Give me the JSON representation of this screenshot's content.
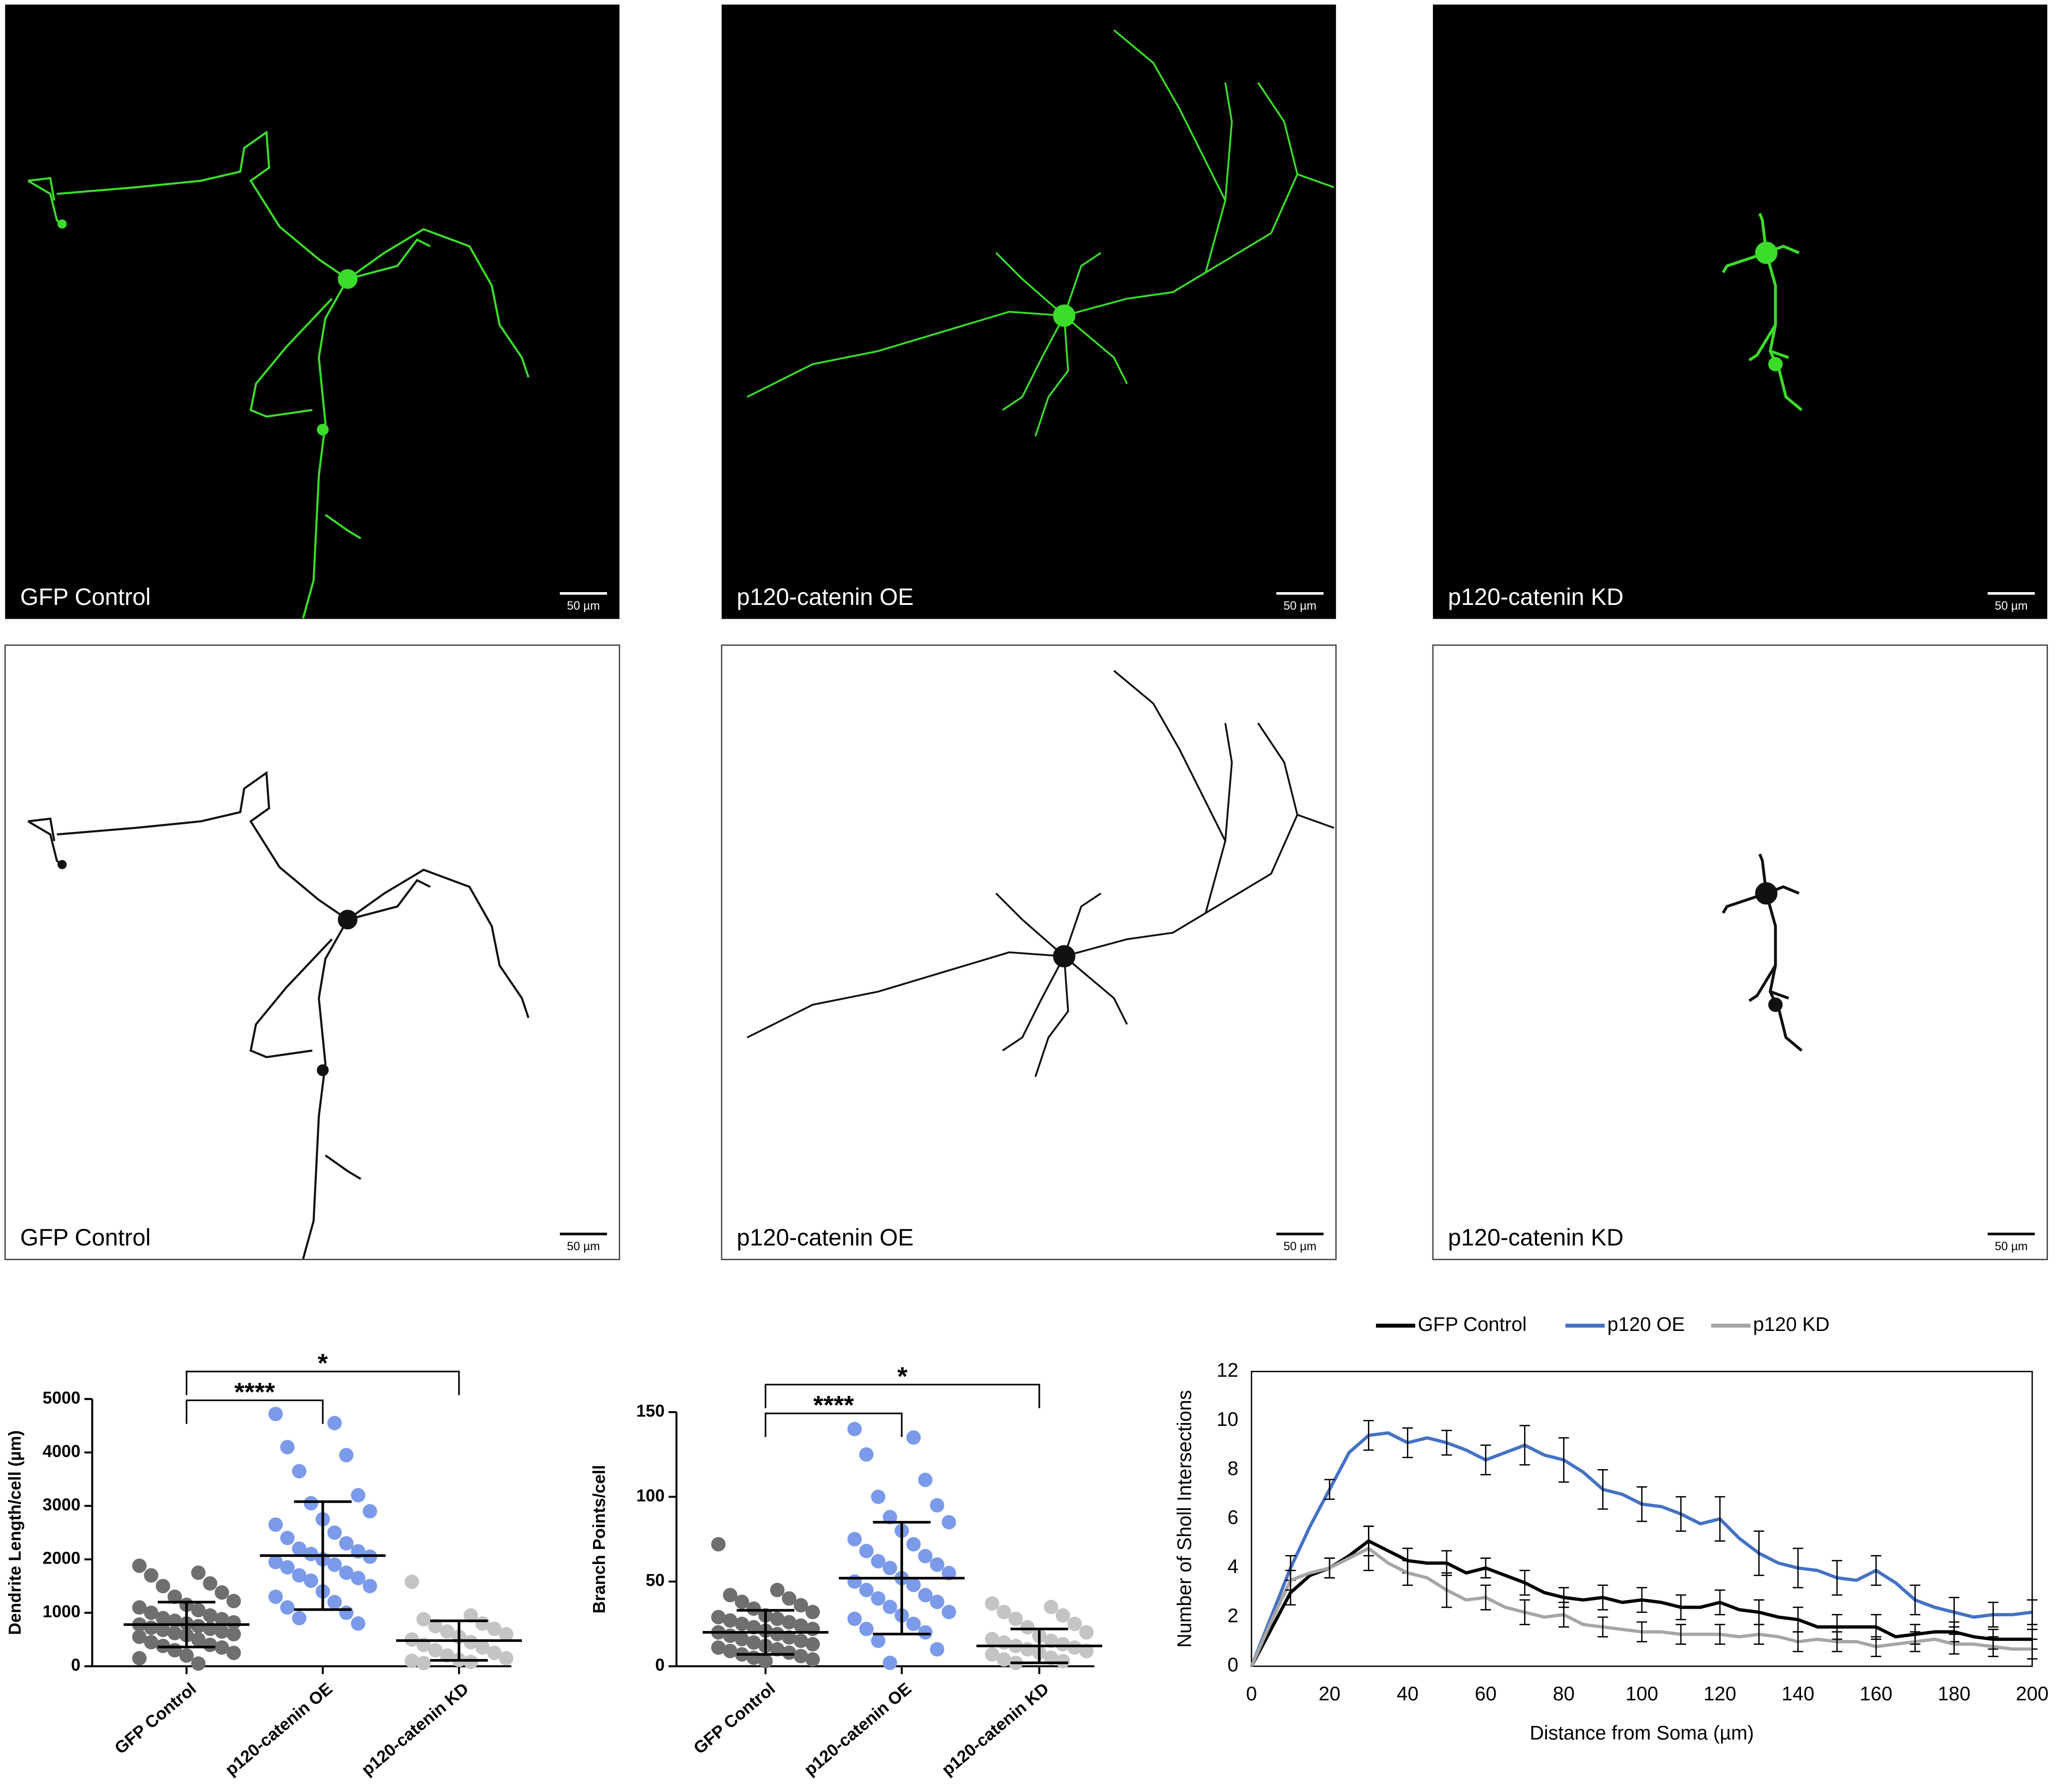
{
  "panels": [
    {
      "label": "GFP Control",
      "scale_bar": "50 µm"
    },
    {
      "label": "p120-catenin OE",
      "scale_bar": "50 µm"
    },
    {
      "label": "p120-catenin KD",
      "scale_bar": "50 µm"
    },
    {
      "label": "GFP Control",
      "scale_bar": "50 µm"
    },
    {
      "label": "p120-catenin OE",
      "scale_bar": "50 µm"
    },
    {
      "label": "p120-catenin KD",
      "scale_bar": "50 µm"
    }
  ],
  "chart_data": [
    {
      "type": "strip",
      "y_label": "Dendrite Length/cell (µm)",
      "categories": [
        "GFP Control",
        "p120-catenin OE",
        "p120-catenin KD"
      ],
      "colors": [
        "#6f6f6f",
        "#7b9bea",
        "#c4c4c4"
      ],
      "points": [
        [
          1880,
          1750,
          1700,
          1550,
          1500,
          1380,
          1300,
          1220,
          1150,
          1100,
          1050,
          1000,
          950,
          900,
          880,
          850,
          820,
          800,
          780,
          750,
          720,
          700,
          680,
          650,
          620,
          600,
          580,
          550,
          500,
          450,
          400,
          380,
          350,
          300,
          250,
          200,
          150,
          50
        ],
        [
          4720,
          4550,
          4100,
          3950,
          3650,
          3200,
          3050,
          2900,
          2750,
          2650,
          2500,
          2400,
          2300,
          2200,
          2150,
          2100,
          2050,
          2000,
          1950,
          1900,
          1850,
          1750,
          1700,
          1650,
          1600,
          1500,
          1400,
          1300,
          1200,
          1100,
          1000,
          900,
          800
        ],
        [
          1580,
          950,
          880,
          800,
          750,
          700,
          650,
          600,
          550,
          500,
          450,
          400,
          350,
          300,
          250,
          200,
          150,
          120,
          100,
          80,
          60
        ]
      ],
      "means": [
        780,
        2070,
        480
      ],
      "sds": [
        420,
        1010,
        370
      ],
      "ylim": [
        0,
        5000
      ],
      "yticks": [
        0,
        1000,
        2000,
        3000,
        4000,
        5000
      ],
      "comparisons": [
        {
          "groups": [
            "GFP Control",
            "p120-catenin OE"
          ],
          "label": "****"
        },
        {
          "groups": [
            "GFP Control",
            "p120-catenin KD"
          ],
          "label": "*"
        }
      ]
    },
    {
      "type": "strip",
      "y_label": "Branch Points/cell",
      "categories": [
        "GFP Control",
        "p120-catenin OE",
        "p120-catenin KD"
      ],
      "colors": [
        "#6f6f6f",
        "#7b9bea",
        "#c4c4c4"
      ],
      "points": [
        [
          72,
          45,
          42,
          40,
          38,
          36,
          34,
          32,
          30,
          29,
          28,
          27,
          26,
          25,
          24,
          23,
          22,
          21,
          20,
          19,
          18,
          17,
          16,
          15,
          14,
          13,
          12,
          11,
          10,
          9,
          8,
          7,
          6,
          5,
          4,
          3
        ],
        [
          140,
          135,
          125,
          110,
          100,
          95,
          88,
          85,
          80,
          75,
          72,
          68,
          65,
          62,
          60,
          58,
          55,
          52,
          50,
          48,
          45,
          42,
          40,
          38,
          35,
          32,
          30,
          28,
          25,
          22,
          20,
          15,
          10,
          2
        ],
        [
          37,
          35,
          32,
          30,
          28,
          25,
          23,
          20,
          18,
          16,
          15,
          14,
          13,
          12,
          11,
          10,
          9,
          8,
          7,
          5,
          4,
          3,
          2
        ]
      ],
      "means": [
        20,
        52,
        12
      ],
      "sds": [
        13,
        33,
        10
      ],
      "ylim": [
        0,
        150
      ],
      "yticks": [
        0,
        50,
        100,
        150
      ],
      "comparisons": [
        {
          "groups": [
            "GFP Control",
            "p120-catenin OE"
          ],
          "label": "****"
        },
        {
          "groups": [
            "GFP Control",
            "p120-catenin KD"
          ],
          "label": "*"
        }
      ]
    },
    {
      "type": "line",
      "x_label": "Distance from Soma (µm)",
      "y_label": "Number of Sholl Intersections",
      "x": [
        0,
        5,
        10,
        15,
        20,
        25,
        30,
        35,
        40,
        45,
        50,
        55,
        60,
        65,
        70,
        75,
        80,
        85,
        90,
        95,
        100,
        105,
        110,
        115,
        120,
        125,
        130,
        135,
        140,
        145,
        150,
        155,
        160,
        165,
        170,
        175,
        180,
        185,
        190,
        195,
        200
      ],
      "series": [
        {
          "name": "GFP Control",
          "color": "#000000",
          "values": [
            0,
            1.5,
            3,
            3.7,
            4.0,
            4.5,
            5.1,
            4.7,
            4.3,
            4.2,
            4.2,
            3.8,
            4.0,
            3.7,
            3.4,
            3.0,
            2.8,
            2.7,
            2.8,
            2.6,
            2.7,
            2.6,
            2.4,
            2.4,
            2.6,
            2.3,
            2.2,
            2.0,
            1.9,
            1.6,
            1.6,
            1.6,
            1.6,
            1.2,
            1.3,
            1.4,
            1.4,
            1.2,
            1.1,
            1.1,
            1.1
          ],
          "errors": [
            null,
            null,
            0.5,
            null,
            0.4,
            null,
            0.6,
            null,
            0.5,
            null,
            0.5,
            null,
            0.4,
            null,
            0.5,
            null,
            0.4,
            null,
            0.5,
            null,
            0.5,
            null,
            0.5,
            null,
            0.5,
            null,
            0.5,
            null,
            0.5,
            null,
            0.5,
            null,
            0.5,
            null,
            0.4,
            null,
            0.4,
            null,
            0.4,
            null,
            0.4
          ]
        },
        {
          "name": "p120 OE",
          "color": "#4472c4",
          "values": [
            0,
            2,
            4,
            5.7,
            7.2,
            8.7,
            9.4,
            9.5,
            9.1,
            9.3,
            9.1,
            8.8,
            8.4,
            8.7,
            9.0,
            8.6,
            8.4,
            7.9,
            7.2,
            7.0,
            6.6,
            6.5,
            6.2,
            5.8,
            6.0,
            5.2,
            4.6,
            4.2,
            4.0,
            3.9,
            3.6,
            3.5,
            3.9,
            3.4,
            2.7,
            2.4,
            2.2,
            2.0,
            2.1,
            2.1,
            2.2
          ],
          "errors": [
            null,
            null,
            0.5,
            null,
            0.4,
            null,
            0.6,
            null,
            0.6,
            null,
            0.5,
            null,
            0.6,
            null,
            0.8,
            null,
            0.9,
            null,
            0.8,
            null,
            0.7,
            null,
            0.7,
            null,
            0.9,
            null,
            0.9,
            null,
            0.8,
            null,
            0.7,
            null,
            0.6,
            null,
            0.6,
            null,
            0.6,
            null,
            0.5,
            null,
            0.5
          ]
        },
        {
          "name": "p120 KD",
          "color": "#a6a6a6",
          "values": [
            0,
            1.8,
            3.5,
            3.8,
            4.0,
            4.4,
            4.8,
            4.2,
            3.8,
            3.6,
            3.1,
            2.7,
            2.8,
            2.4,
            2.2,
            2.0,
            2.1,
            1.7,
            1.6,
            1.5,
            1.4,
            1.4,
            1.3,
            1.3,
            1.3,
            1.2,
            1.3,
            1.2,
            1.0,
            1.1,
            1.0,
            1.0,
            0.8,
            0.9,
            1.0,
            1.1,
            0.9,
            0.9,
            0.8,
            0.7,
            0.7
          ],
          "errors": [
            null,
            null,
            0.4,
            null,
            0.4,
            null,
            0.9,
            null,
            0.5,
            null,
            0.7,
            null,
            0.5,
            null,
            0.5,
            null,
            0.5,
            null,
            0.4,
            null,
            0.4,
            null,
            0.4,
            null,
            0.4,
            null,
            0.4,
            null,
            0.4,
            null,
            0.4,
            null,
            0.4,
            null,
            0.4,
            null,
            0.4,
            null,
            0.4,
            null,
            0.4
          ]
        }
      ],
      "xlim": [
        0,
        200
      ],
      "xticks": [
        0,
        20,
        40,
        60,
        80,
        100,
        120,
        140,
        160,
        180,
        200
      ],
      "ylim": [
        0,
        12
      ],
      "yticks": [
        0,
        2,
        4,
        6,
        8,
        10,
        12
      ],
      "legend": "top"
    }
  ]
}
